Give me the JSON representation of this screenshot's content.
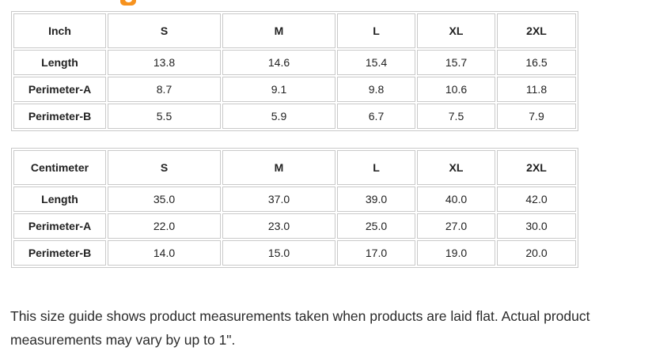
{
  "decor": {
    "accent_color": "#f6921e",
    "partial_heading_note": "bottom edge of an orange heading letter cropped by the top of the viewport"
  },
  "tables": [
    {
      "unit_header": "Inch",
      "size_headers": [
        "S",
        "M",
        "L",
        "XL",
        "2XL"
      ],
      "rows": [
        {
          "label": "Length",
          "values": [
            "13.8",
            "14.6",
            "15.4",
            "15.7",
            "16.5"
          ]
        },
        {
          "label": "Perimeter-A",
          "values": [
            "8.7",
            "9.1",
            "9.8",
            "10.6",
            "11.8"
          ]
        },
        {
          "label": "Perimeter-B",
          "values": [
            "5.5",
            "5.9",
            "6.7",
            "7.5",
            "7.9"
          ]
        }
      ]
    },
    {
      "unit_header": "Centimeter",
      "size_headers": [
        "S",
        "M",
        "L",
        "XL",
        "2XL"
      ],
      "rows": [
        {
          "label": "Length",
          "values": [
            "35.0",
            "37.0",
            "39.0",
            "40.0",
            "42.0"
          ]
        },
        {
          "label": "Perimeter-A",
          "values": [
            "22.0",
            "23.0",
            "25.0",
            "27.0",
            "30.0"
          ]
        },
        {
          "label": "Perimeter-B",
          "values": [
            "14.0",
            "15.0",
            "17.0",
            "19.0",
            "20.0"
          ]
        }
      ]
    }
  ],
  "note": {
    "text": "This size guide shows product measurements taken when products are laid flat. Actual product measurements may vary by up to 1\"."
  }
}
